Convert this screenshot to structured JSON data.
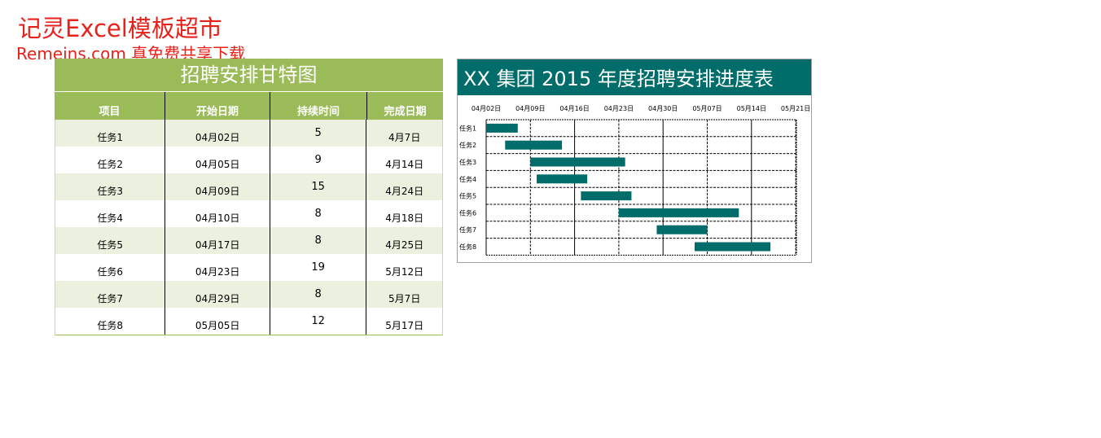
{
  "watermark": {
    "line1": "记灵Excel模板超市",
    "line2": "Remeins.com 真免费共享下载"
  },
  "table": {
    "title": "招聘安排甘特图",
    "headers": [
      "项目",
      "开始日期",
      "持续时间",
      "完成日期"
    ],
    "rows": [
      [
        "任务1",
        "04月02日",
        "5",
        "4月7日"
      ],
      [
        "任务2",
        "04月05日",
        "9",
        "4月14日"
      ],
      [
        "任务3",
        "04月09日",
        "15",
        "4月24日"
      ],
      [
        "任务4",
        "04月10日",
        "8",
        "4月18日"
      ],
      [
        "任务5",
        "04月17日",
        "8",
        "4月25日"
      ],
      [
        "任务6",
        "04月23日",
        "19",
        "5月12日"
      ],
      [
        "任务7",
        "04月29日",
        "8",
        "5月7日"
      ],
      [
        "任务8",
        "05月05日",
        "12",
        "5月17日"
      ]
    ]
  },
  "colors": {
    "table_header": "#9bbb59",
    "table_stripe": "#ebf1de",
    "gantt_title_bg": "#006d6a",
    "gantt_bar": "#006d6a"
  },
  "chart_data": {
    "type": "bar",
    "orientation": "horizontal-gantt",
    "title": "XX 集团 2015 年度招聘安排进度表",
    "categories": [
      "任务1",
      "任务2",
      "任务3",
      "任务4",
      "任务5",
      "任务6",
      "任务7",
      "任务8"
    ],
    "series": [
      {
        "start": [
          "2015-04-02",
          "2015-04-05",
          "2015-04-09",
          "2015-04-10",
          "2015-04-17",
          "2015-04-23",
          "2015-04-29",
          "2015-05-05"
        ],
        "duration_days": [
          5,
          9,
          15,
          8,
          8,
          19,
          8,
          12
        ]
      }
    ],
    "x_ticks": [
      "04月02日",
      "04月09日",
      "04月16日",
      "04月23日",
      "04月30日",
      "05月07日",
      "05月14日",
      "05月21日"
    ],
    "xlim": [
      "2015-04-02",
      "2015-05-21"
    ],
    "grid": true,
    "legend": "none"
  }
}
